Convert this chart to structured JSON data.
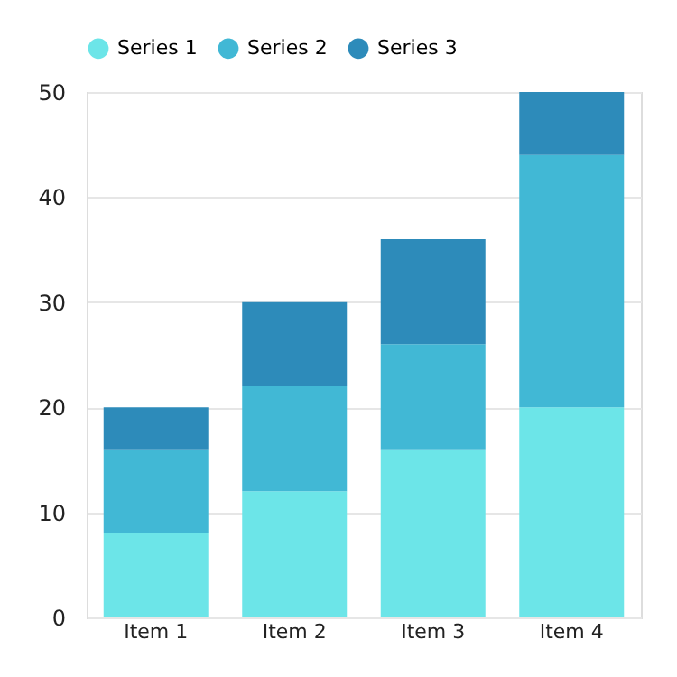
{
  "chart_data": {
    "type": "bar",
    "stacked": true,
    "categories": [
      "Item 1",
      "Item 2",
      "Item 3",
      "Item 4"
    ],
    "series": [
      {
        "name": "Series 1",
        "color": "#6ce5e8",
        "values": [
          8,
          12,
          16,
          20
        ]
      },
      {
        "name": "Series 2",
        "color": "#41b8d5",
        "values": [
          8,
          10,
          10,
          24
        ]
      },
      {
        "name": "Series 3",
        "color": "#2d8bba",
        "values": [
          4,
          8,
          10,
          6
        ]
      }
    ],
    "ylim": [
      0,
      50
    ],
    "yticks": [
      0,
      10,
      20,
      30,
      40,
      50
    ],
    "grid": "y",
    "legend": "top"
  }
}
